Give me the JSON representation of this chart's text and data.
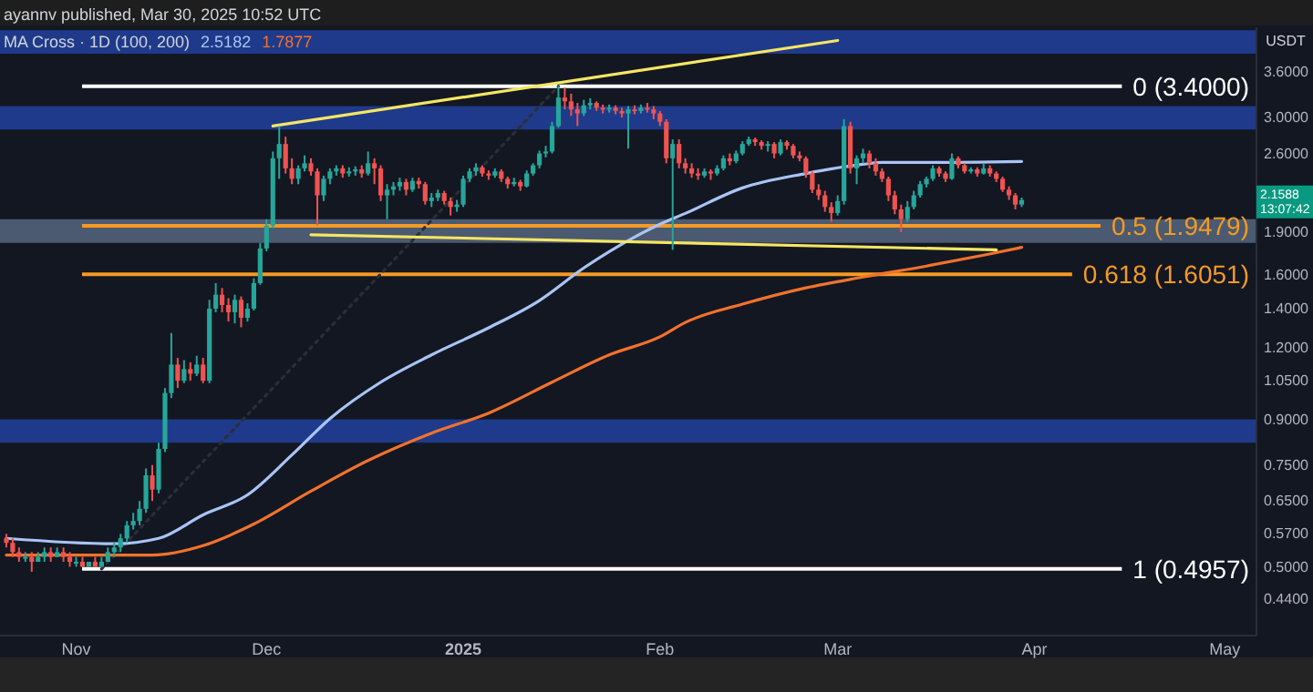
{
  "chart_data": {
    "type": "candlestick",
    "subtitle": "ayannv published, Mar 30, 2025 10:52 UTC",
    "title": "MA Cross · 1D (100, 200)",
    "ylabel": "USDT",
    "log": true,
    "grid": false,
    "ylim": [
      0.38,
      4.3
    ],
    "yticks": [
      {
        "value": 3.6,
        "label": "3.6000"
      },
      {
        "value": 3.0,
        "label": "3.0000"
      },
      {
        "value": 2.6,
        "label": "2.6000"
      },
      {
        "value": 1.9,
        "label": "1.9000"
      },
      {
        "value": 1.6,
        "label": "1.6000"
      },
      {
        "value": 1.4,
        "label": "1.4000"
      },
      {
        "value": 1.2,
        "label": "1.2000"
      },
      {
        "value": 1.05,
        "label": "1.0500"
      },
      {
        "value": 0.9,
        "label": "0.9000"
      },
      {
        "value": 0.75,
        "label": "0.7500"
      },
      {
        "value": 0.65,
        "label": "0.6500"
      },
      {
        "value": 0.57,
        "label": "0.5700"
      },
      {
        "value": 0.5,
        "label": "0.5000"
      },
      {
        "value": 0.44,
        "label": "0.4400"
      }
    ],
    "xlim": [
      "2024-10-20",
      "2025-05-06"
    ],
    "xticks": [
      {
        "value": "2024-11-01",
        "label": "Nov"
      },
      {
        "value": "2024-12-01",
        "label": "Dec"
      },
      {
        "value": "2025-01-01",
        "label": "2025"
      },
      {
        "value": "2025-02-01",
        "label": "Feb"
      },
      {
        "value": "2025-03-01",
        "label": "Mar"
      },
      {
        "value": "2025-04-01",
        "label": "Apr"
      },
      {
        "value": "2025-05-01",
        "label": "May"
      }
    ],
    "x": [
      "2024-10-21",
      "2024-10-22",
      "2024-10-23",
      "2024-10-24",
      "2024-10-25",
      "2024-10-26",
      "2024-10-27",
      "2024-10-28",
      "2024-10-29",
      "2024-10-30",
      "2024-10-31",
      "2024-11-01",
      "2024-11-02",
      "2024-11-03",
      "2024-11-04",
      "2024-11-05",
      "2024-11-06",
      "2024-11-07",
      "2024-11-08",
      "2024-11-09",
      "2024-11-10",
      "2024-11-11",
      "2024-11-12",
      "2024-11-13",
      "2024-11-14",
      "2024-11-15",
      "2024-11-16",
      "2024-11-17",
      "2024-11-18",
      "2024-11-19",
      "2024-11-20",
      "2024-11-21",
      "2024-11-22",
      "2024-11-23",
      "2024-11-24",
      "2024-11-25",
      "2024-11-26",
      "2024-11-27",
      "2024-11-28",
      "2024-11-29",
      "2024-11-30",
      "2024-12-01",
      "2024-12-02",
      "2024-12-03",
      "2024-12-04",
      "2024-12-05",
      "2024-12-06",
      "2024-12-07",
      "2024-12-08",
      "2024-12-09",
      "2024-12-10",
      "2024-12-11",
      "2024-12-12",
      "2024-12-13",
      "2024-12-14",
      "2024-12-15",
      "2024-12-16",
      "2024-12-17",
      "2024-12-18",
      "2024-12-19",
      "2024-12-20",
      "2024-12-21",
      "2024-12-22",
      "2024-12-23",
      "2024-12-24",
      "2024-12-25",
      "2024-12-26",
      "2024-12-27",
      "2024-12-28",
      "2024-12-29",
      "2024-12-30",
      "2024-12-31",
      "2025-01-01",
      "2025-01-02",
      "2025-01-03",
      "2025-01-04",
      "2025-01-05",
      "2025-01-06",
      "2025-01-07",
      "2025-01-08",
      "2025-01-09",
      "2025-01-10",
      "2025-01-11",
      "2025-01-12",
      "2025-01-13",
      "2025-01-14",
      "2025-01-15",
      "2025-01-16",
      "2025-01-17",
      "2025-01-18",
      "2025-01-19",
      "2025-01-20",
      "2025-01-21",
      "2025-01-22",
      "2025-01-23",
      "2025-01-24",
      "2025-01-25",
      "2025-01-26",
      "2025-01-27",
      "2025-01-28",
      "2025-01-29",
      "2025-01-30",
      "2025-01-31",
      "2025-02-01",
      "2025-02-02",
      "2025-02-03",
      "2025-02-04",
      "2025-02-05",
      "2025-02-06",
      "2025-02-07",
      "2025-02-08",
      "2025-02-09",
      "2025-02-10",
      "2025-02-11",
      "2025-02-12",
      "2025-02-13",
      "2025-02-14",
      "2025-02-15",
      "2025-02-16",
      "2025-02-17",
      "2025-02-18",
      "2025-02-19",
      "2025-02-20",
      "2025-02-21",
      "2025-02-22",
      "2025-02-23",
      "2025-02-24",
      "2025-02-25",
      "2025-02-26",
      "2025-02-27",
      "2025-02-28",
      "2025-03-01",
      "2025-03-02",
      "2025-03-03",
      "2025-03-04",
      "2025-03-05",
      "2025-03-06",
      "2025-03-07",
      "2025-03-08",
      "2025-03-09",
      "2025-03-10",
      "2025-03-11",
      "2025-03-12",
      "2025-03-13",
      "2025-03-14",
      "2025-03-15",
      "2025-03-16",
      "2025-03-17",
      "2025-03-18",
      "2025-03-19",
      "2025-03-20",
      "2025-03-21",
      "2025-03-22",
      "2025-03-23",
      "2025-03-24",
      "2025-03-25",
      "2025-03-26",
      "2025-03-27",
      "2025-03-28",
      "2025-03-29",
      "2025-03-30"
    ],
    "ohlc": [
      [
        0.56,
        0.57,
        0.54,
        0.55
      ],
      [
        0.55,
        0.56,
        0.52,
        0.53
      ],
      [
        0.53,
        0.54,
        0.51,
        0.52
      ],
      [
        0.52,
        0.53,
        0.51,
        0.52
      ],
      [
        0.52,
        0.53,
        0.49,
        0.51
      ],
      [
        0.51,
        0.53,
        0.51,
        0.52
      ],
      [
        0.52,
        0.54,
        0.51,
        0.53
      ],
      [
        0.53,
        0.54,
        0.51,
        0.52
      ],
      [
        0.52,
        0.54,
        0.52,
        0.53
      ],
      [
        0.53,
        0.54,
        0.51,
        0.52
      ],
      [
        0.52,
        0.53,
        0.5,
        0.51
      ],
      [
        0.51,
        0.52,
        0.5,
        0.51
      ],
      [
        0.51,
        0.52,
        0.5,
        0.5
      ],
      [
        0.5,
        0.51,
        0.5,
        0.51
      ],
      [
        0.51,
        0.52,
        0.5,
        0.5
      ],
      [
        0.5,
        0.52,
        0.5,
        0.51
      ],
      [
        0.51,
        0.54,
        0.51,
        0.53
      ],
      [
        0.53,
        0.55,
        0.52,
        0.54
      ],
      [
        0.54,
        0.57,
        0.53,
        0.56
      ],
      [
        0.56,
        0.6,
        0.55,
        0.59
      ],
      [
        0.59,
        0.62,
        0.58,
        0.6
      ],
      [
        0.6,
        0.65,
        0.59,
        0.63
      ],
      [
        0.63,
        0.74,
        0.62,
        0.72
      ],
      [
        0.72,
        0.75,
        0.65,
        0.68
      ],
      [
        0.68,
        0.82,
        0.67,
        0.8
      ],
      [
        0.8,
        1.02,
        0.79,
        1.0
      ],
      [
        1.0,
        1.27,
        0.98,
        1.12
      ],
      [
        1.12,
        1.15,
        1.02,
        1.05
      ],
      [
        1.05,
        1.14,
        1.04,
        1.1
      ],
      [
        1.1,
        1.13,
        1.05,
        1.08
      ],
      [
        1.08,
        1.16,
        1.07,
        1.12
      ],
      [
        1.12,
        1.15,
        1.04,
        1.05
      ],
      [
        1.05,
        1.45,
        1.04,
        1.4
      ],
      [
        1.4,
        1.55,
        1.38,
        1.48
      ],
      [
        1.48,
        1.52,
        1.38,
        1.42
      ],
      [
        1.42,
        1.46,
        1.33,
        1.38
      ],
      [
        1.38,
        1.48,
        1.32,
        1.45
      ],
      [
        1.45,
        1.47,
        1.3,
        1.35
      ],
      [
        1.35,
        1.43,
        1.33,
        1.4
      ],
      [
        1.4,
        1.58,
        1.39,
        1.55
      ],
      [
        1.55,
        1.82,
        1.54,
        1.78
      ],
      [
        1.78,
        2.0,
        1.76,
        1.95
      ],
      [
        1.95,
        2.62,
        1.93,
        2.55
      ],
      [
        2.55,
        2.9,
        2.35,
        2.7
      ],
      [
        2.7,
        2.78,
        2.4,
        2.45
      ],
      [
        2.45,
        2.55,
        2.3,
        2.35
      ],
      [
        2.35,
        2.48,
        2.3,
        2.45
      ],
      [
        2.45,
        2.58,
        2.42,
        2.5
      ],
      [
        2.5,
        2.55,
        2.38,
        2.42
      ],
      [
        2.42,
        2.45,
        1.95,
        2.2
      ],
      [
        2.2,
        2.38,
        2.15,
        2.35
      ],
      [
        2.35,
        2.45,
        2.3,
        2.42
      ],
      [
        2.42,
        2.48,
        2.38,
        2.45
      ],
      [
        2.45,
        2.48,
        2.36,
        2.4
      ],
      [
        2.4,
        2.46,
        2.37,
        2.42
      ],
      [
        2.42,
        2.47,
        2.38,
        2.44
      ],
      [
        2.44,
        2.48,
        2.36,
        2.4
      ],
      [
        2.4,
        2.62,
        2.38,
        2.5
      ],
      [
        2.5,
        2.55,
        2.3,
        2.45
      ],
      [
        2.45,
        2.48,
        2.15,
        2.2
      ],
      [
        2.2,
        2.3,
        2.0,
        2.25
      ],
      [
        2.25,
        2.32,
        2.2,
        2.28
      ],
      [
        2.28,
        2.36,
        2.24,
        2.32
      ],
      [
        2.32,
        2.35,
        2.2,
        2.25
      ],
      [
        2.25,
        2.36,
        2.23,
        2.33
      ],
      [
        2.33,
        2.36,
        2.26,
        2.3
      ],
      [
        2.3,
        2.32,
        2.12,
        2.15
      ],
      [
        2.15,
        2.22,
        2.1,
        2.18
      ],
      [
        2.18,
        2.25,
        2.15,
        2.22
      ],
      [
        2.22,
        2.24,
        2.12,
        2.15
      ],
      [
        2.15,
        2.18,
        2.03,
        2.1
      ],
      [
        2.1,
        2.16,
        2.06,
        2.12
      ],
      [
        2.12,
        2.38,
        2.1,
        2.35
      ],
      [
        2.35,
        2.45,
        2.32,
        2.42
      ],
      [
        2.42,
        2.5,
        2.38,
        2.46
      ],
      [
        2.46,
        2.48,
        2.37,
        2.4
      ],
      [
        2.4,
        2.43,
        2.34,
        2.38
      ],
      [
        2.38,
        2.45,
        2.36,
        2.42
      ],
      [
        2.42,
        2.44,
        2.32,
        2.35
      ],
      [
        2.35,
        2.37,
        2.26,
        2.3
      ],
      [
        2.3,
        2.36,
        2.28,
        2.32
      ],
      [
        2.32,
        2.34,
        2.24,
        2.28
      ],
      [
        2.28,
        2.43,
        2.27,
        2.4
      ],
      [
        2.4,
        2.5,
        2.38,
        2.48
      ],
      [
        2.48,
        2.63,
        2.45,
        2.6
      ],
      [
        2.6,
        2.68,
        2.56,
        2.62
      ],
      [
        2.62,
        2.95,
        2.6,
        2.9
      ],
      [
        2.9,
        3.4,
        2.88,
        3.25
      ],
      [
        3.25,
        3.38,
        3.1,
        3.2
      ],
      [
        3.2,
        3.3,
        3.02,
        3.1
      ],
      [
        3.1,
        3.18,
        2.9,
        3.05
      ],
      [
        3.05,
        3.22,
        3.02,
        3.15
      ],
      [
        3.15,
        3.24,
        3.1,
        3.18
      ],
      [
        3.18,
        3.2,
        3.08,
        3.12
      ],
      [
        3.12,
        3.16,
        3.05,
        3.1
      ],
      [
        3.1,
        3.16,
        3.06,
        3.12
      ],
      [
        3.12,
        3.15,
        3.04,
        3.08
      ],
      [
        3.08,
        3.12,
        3.0,
        3.05
      ],
      [
        3.05,
        3.14,
        2.65,
        3.1
      ],
      [
        3.1,
        3.15,
        3.04,
        3.08
      ],
      [
        3.08,
        3.16,
        3.05,
        3.12
      ],
      [
        3.12,
        3.18,
        3.06,
        3.1
      ],
      [
        3.1,
        3.14,
        2.98,
        3.05
      ],
      [
        3.05,
        3.08,
        2.9,
        2.95
      ],
      [
        2.95,
        2.98,
        2.5,
        2.55
      ],
      [
        2.55,
        2.75,
        1.77,
        2.7
      ],
      [
        2.7,
        2.75,
        2.45,
        2.5
      ],
      [
        2.5,
        2.55,
        2.4,
        2.45
      ],
      [
        2.45,
        2.5,
        2.36,
        2.4
      ],
      [
        2.4,
        2.45,
        2.34,
        2.38
      ],
      [
        2.38,
        2.45,
        2.36,
        2.42
      ],
      [
        2.42,
        2.44,
        2.34,
        2.4
      ],
      [
        2.4,
        2.48,
        2.38,
        2.45
      ],
      [
        2.45,
        2.58,
        2.43,
        2.55
      ],
      [
        2.55,
        2.6,
        2.48,
        2.52
      ],
      [
        2.52,
        2.63,
        2.5,
        2.6
      ],
      [
        2.6,
        2.73,
        2.58,
        2.7
      ],
      [
        2.7,
        2.78,
        2.68,
        2.75
      ],
      [
        2.75,
        2.77,
        2.68,
        2.72
      ],
      [
        2.72,
        2.74,
        2.64,
        2.68
      ],
      [
        2.68,
        2.73,
        2.62,
        2.7
      ],
      [
        2.7,
        2.72,
        2.55,
        2.6
      ],
      [
        2.6,
        2.75,
        2.58,
        2.72
      ],
      [
        2.72,
        2.74,
        2.64,
        2.68
      ],
      [
        2.68,
        2.7,
        2.55,
        2.58
      ],
      [
        2.58,
        2.62,
        2.52,
        2.55
      ],
      [
        2.55,
        2.57,
        2.36,
        2.4
      ],
      [
        2.4,
        2.42,
        2.22,
        2.25
      ],
      [
        2.25,
        2.3,
        2.16,
        2.2
      ],
      [
        2.2,
        2.24,
        2.06,
        2.1
      ],
      [
        2.1,
        2.14,
        1.98,
        2.05
      ],
      [
        2.05,
        2.2,
        2.03,
        2.15
      ],
      [
        2.15,
        2.98,
        2.12,
        2.9
      ],
      [
        2.9,
        2.95,
        2.4,
        2.45
      ],
      [
        2.45,
        2.58,
        2.3,
        2.55
      ],
      [
        2.55,
        2.65,
        2.5,
        2.6
      ],
      [
        2.6,
        2.63,
        2.45,
        2.5
      ],
      [
        2.5,
        2.55,
        2.38,
        2.42
      ],
      [
        2.42,
        2.45,
        2.32,
        2.35
      ],
      [
        2.35,
        2.37,
        2.15,
        2.2
      ],
      [
        2.2,
        2.24,
        2.04,
        2.08
      ],
      [
        2.08,
        2.12,
        1.9,
        2.0
      ],
      [
        2.0,
        2.15,
        1.98,
        2.1
      ],
      [
        2.1,
        2.24,
        2.08,
        2.2
      ],
      [
        2.2,
        2.33,
        2.18,
        2.3
      ],
      [
        2.3,
        2.37,
        2.27,
        2.35
      ],
      [
        2.35,
        2.48,
        2.33,
        2.45
      ],
      [
        2.45,
        2.47,
        2.37,
        2.4
      ],
      [
        2.4,
        2.42,
        2.32,
        2.35
      ],
      [
        2.35,
        2.6,
        2.34,
        2.55
      ],
      [
        2.55,
        2.57,
        2.45,
        2.48
      ],
      [
        2.48,
        2.5,
        2.4,
        2.42
      ],
      [
        2.42,
        2.46,
        2.4,
        2.44
      ],
      [
        2.44,
        2.46,
        2.37,
        2.4
      ],
      [
        2.4,
        2.5,
        2.39,
        2.45
      ],
      [
        2.45,
        2.48,
        2.37,
        2.4
      ],
      [
        2.4,
        2.42,
        2.32,
        2.35
      ],
      [
        2.35,
        2.37,
        2.23,
        2.25
      ],
      [
        2.25,
        2.28,
        2.16,
        2.2
      ],
      [
        2.2,
        2.22,
        2.08,
        2.12
      ],
      [
        2.12,
        2.18,
        2.1,
        2.1588
      ]
    ],
    "series": [
      {
        "type": "line",
        "name": "2.5182",
        "color": "#a9c4f5",
        "x": [
          "2024-10-21",
          "2024-11-07",
          "2024-11-14",
          "2024-11-21",
          "2024-11-28",
          "2024-12-05",
          "2024-12-11",
          "2024-12-19",
          "2024-12-27",
          "2025-01-05",
          "2025-01-13",
          "2025-01-20",
          "2025-01-28",
          "2025-02-01",
          "2025-02-05",
          "2025-02-14",
          "2025-02-24",
          "2025-03-05",
          "2025-03-08",
          "2025-03-15",
          "2025-03-30"
        ],
        "values": [
          0.56,
          0.548,
          0.56,
          0.615,
          0.666,
          0.781,
          0.903,
          1.044,
          1.164,
          1.297,
          1.446,
          1.647,
          1.863,
          1.96,
          2.047,
          2.266,
          2.4,
          2.49,
          2.508,
          2.508,
          2.5182
        ]
      },
      {
        "type": "line",
        "name": "1.7877",
        "color": "#f2722c",
        "x": [
          "2024-10-21",
          "2024-11-13",
          "2024-11-21",
          "2024-11-29",
          "2024-12-08",
          "2024-12-17",
          "2024-12-27",
          "2025-01-05",
          "2025-01-15",
          "2025-01-24",
          "2025-02-01",
          "2025-02-05",
          "2025-02-14",
          "2025-02-24",
          "2025-03-05",
          "2025-03-15",
          "2025-03-24",
          "2025-03-30"
        ],
        "values": [
          0.524,
          0.524,
          0.544,
          0.593,
          0.676,
          0.764,
          0.852,
          0.923,
          1.044,
          1.164,
          1.251,
          1.325,
          1.425,
          1.521,
          1.588,
          1.659,
          1.733,
          1.7877
        ]
      },
      {
        "type": "line",
        "color": "#f5e663",
        "x": [
          "2024-12-02",
          "2025-03-01"
        ],
        "values": [
          2.9,
          4.08
        ]
      },
      {
        "type": "line",
        "color": "#f5e663",
        "x": [
          "2024-12-08",
          "2025-03-26"
        ],
        "values": [
          1.88,
          1.77
        ]
      },
      {
        "type": "line",
        "color": "#2a2e39",
        "line_style": "dotted",
        "x": [
          "2024-11-05",
          "2025-01-16"
        ],
        "values": [
          0.4957,
          3.4
        ]
      }
    ],
    "bands": [
      {
        "axis": "y",
        "from": 3.87,
        "to": 4.25,
        "color": "#1f3a8a"
      },
      {
        "axis": "y",
        "from": 2.86,
        "to": 3.14,
        "color": "#1f3a8a"
      },
      {
        "axis": "y",
        "from": 1.82,
        "to": 2.0,
        "color": "#4b5a70"
      },
      {
        "axis": "y",
        "from": 0.82,
        "to": 0.9,
        "color": "#1f3a8a"
      }
    ],
    "ref_lines": [
      {
        "axis": "y",
        "value": 3.4,
        "label": "0 (3.4000)",
        "color": "#ffffff"
      },
      {
        "axis": "y",
        "value": 1.9479,
        "label": "0.5 (1.9479)",
        "color": "#f59a23"
      },
      {
        "axis": "y",
        "value": 1.6051,
        "label": "0.618 (1.6051)",
        "color": "#f59a23"
      },
      {
        "axis": "y",
        "value": 0.4957,
        "label": "1 (0.4957)",
        "color": "#ffffff"
      }
    ],
    "annotations": [
      "2.1588",
      "13:07:42"
    ]
  }
}
